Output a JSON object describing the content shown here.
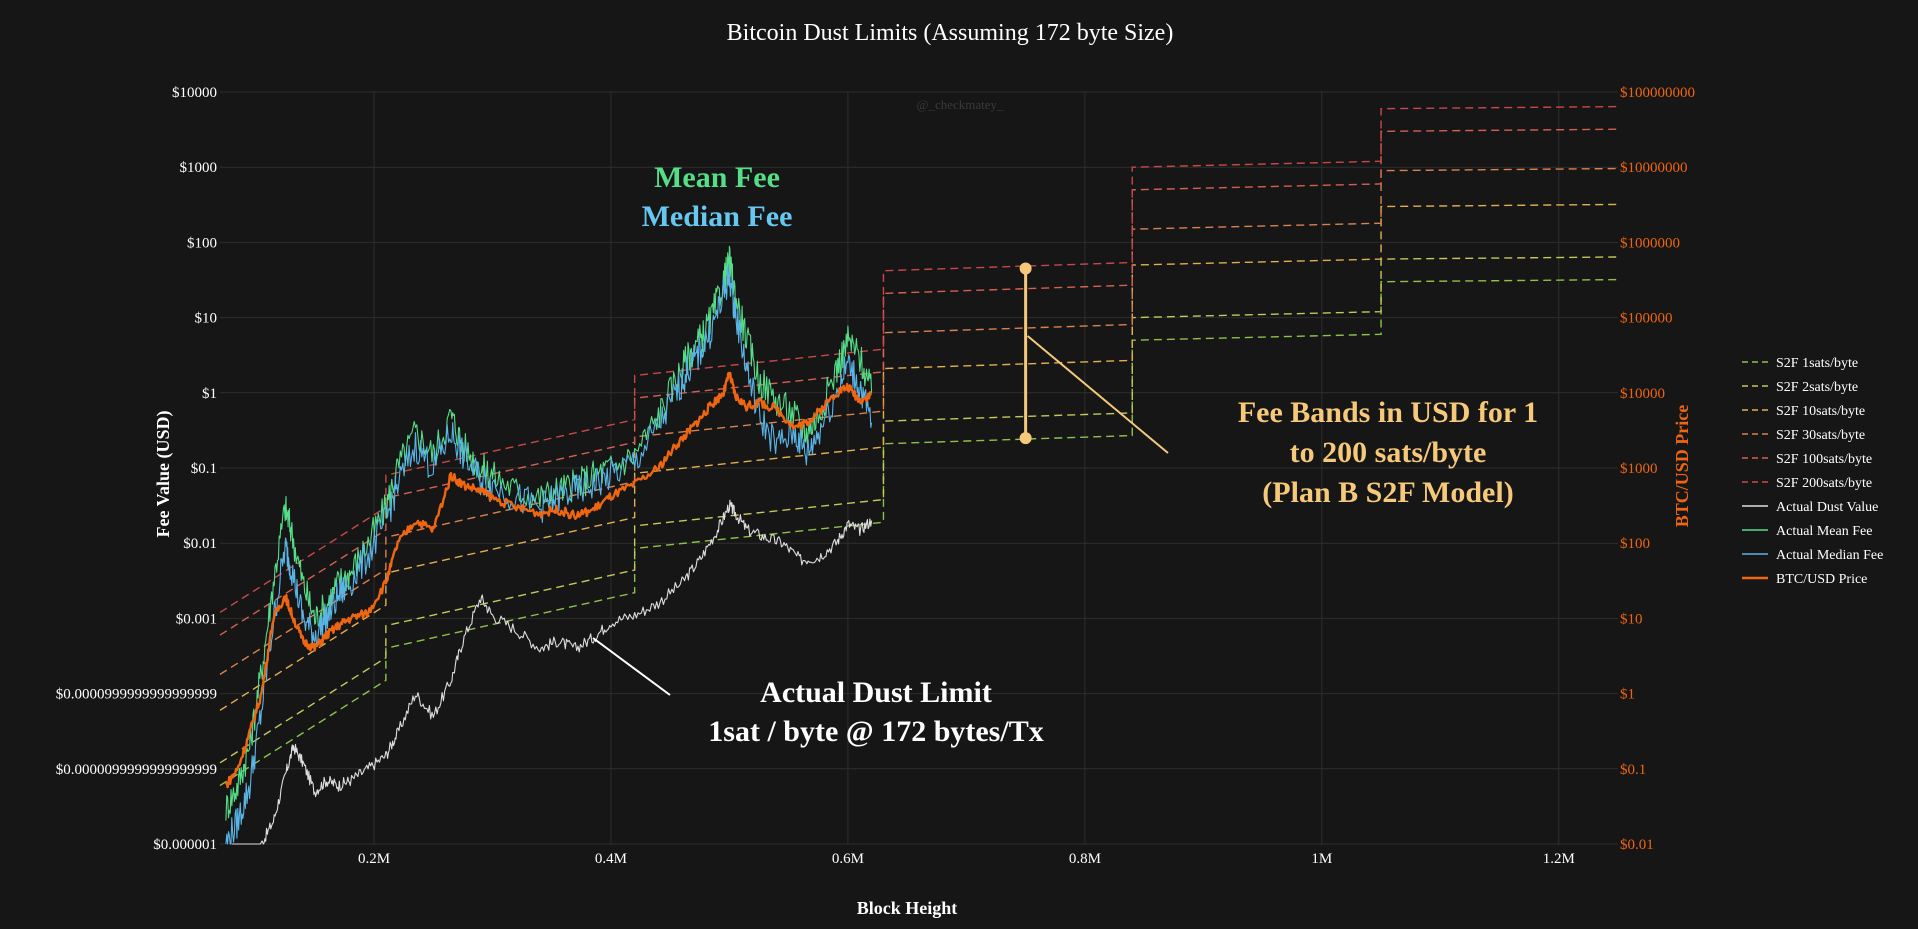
{
  "chart_data": {
    "type": "line",
    "title": "Bitcoin Dust Limits (Assuming 172 byte Size)",
    "watermark": "@_checkmatey_",
    "xlabel": "Block Height",
    "ylabel": "Fee Value (USD)",
    "y2label": "BTC/USD Price",
    "xlim": [
      70000,
      1250000
    ],
    "ylim": [
      1e-06,
      10000
    ],
    "y2lim": [
      0.01,
      100000000
    ],
    "yscale": "log",
    "y2scale": "log",
    "grid": true,
    "legend_position": "right",
    "x_ticks": [
      {
        "value": 200000,
        "label": "0.2M"
      },
      {
        "value": 400000,
        "label": "0.4M"
      },
      {
        "value": 600000,
        "label": "0.6M"
      },
      {
        "value": 800000,
        "label": "0.8M"
      },
      {
        "value": 1000000,
        "label": "1M"
      },
      {
        "value": 1200000,
        "label": "1.2M"
      }
    ],
    "y_ticks": [
      {
        "value": 10000,
        "label": "$10000"
      },
      {
        "value": 1000,
        "label": "$1000"
      },
      {
        "value": 100,
        "label": "$100"
      },
      {
        "value": 10,
        "label": "$10"
      },
      {
        "value": 1,
        "label": "$1"
      },
      {
        "value": 0.1,
        "label": "$0.1"
      },
      {
        "value": 0.01,
        "label": "$0.01"
      },
      {
        "value": 0.001,
        "label": "$0.001"
      },
      {
        "value": 0.0001,
        "label": "$0.0000999999999999999"
      },
      {
        "value": 1e-05,
        "label": "$0.0000099999999999999"
      },
      {
        "value": 1e-06,
        "label": "$0.000001"
      }
    ],
    "y2_ticks": [
      {
        "value": 100000000,
        "label": "$100000000"
      },
      {
        "value": 10000000,
        "label": "$10000000"
      },
      {
        "value": 1000000,
        "label": "$1000000"
      },
      {
        "value": 100000,
        "label": "$100000"
      },
      {
        "value": 10000,
        "label": "$10000"
      },
      {
        "value": 1000,
        "label": "$1000"
      },
      {
        "value": 100,
        "label": "$100"
      },
      {
        "value": 10,
        "label": "$10"
      },
      {
        "value": 1,
        "label": "$1"
      },
      {
        "value": 0.1,
        "label": "$0.1"
      },
      {
        "value": 0.01,
        "label": "$0.01"
      }
    ],
    "band_x_edges": [
      70000,
      210000,
      420000,
      630000,
      840000,
      1050000,
      1260000
    ],
    "band_series": [
      {
        "name": "S2F 1sats/byte",
        "color": "#8bc34a",
        "values": [
          [
            6e-06,
            0.00015
          ],
          [
            0.0004,
            0.0022
          ],
          [
            0.0085,
            0.019
          ],
          [
            0.21,
            0.27
          ],
          [
            5.0,
            6.0
          ],
          [
            30,
            32
          ]
        ]
      },
      {
        "name": "S2F 2sats/byte",
        "color": "#c5c85a",
        "values": [
          [
            1.2e-05,
            0.0003
          ],
          [
            0.0008,
            0.0044
          ],
          [
            0.017,
            0.038
          ],
          [
            0.42,
            0.54
          ],
          [
            10.0,
            12.0
          ],
          [
            60,
            64
          ]
        ]
      },
      {
        "name": "S2F 10sats/byte",
        "color": "#e0b050",
        "values": [
          [
            6e-05,
            0.0015
          ],
          [
            0.004,
            0.022
          ],
          [
            0.085,
            0.19
          ],
          [
            2.1,
            2.7
          ],
          [
            50,
            60
          ],
          [
            300,
            320
          ]
        ]
      },
      {
        "name": "S2F 30sats/byte",
        "color": "#d98250",
        "values": [
          [
            0.00018,
            0.0045
          ],
          [
            0.012,
            0.066
          ],
          [
            0.26,
            0.57
          ],
          [
            6.3,
            8.1
          ],
          [
            150,
            180
          ],
          [
            900,
            960
          ]
        ]
      },
      {
        "name": "S2F 100sats/byte",
        "color": "#d56050",
        "values": [
          [
            0.0006,
            0.015
          ],
          [
            0.04,
            0.22
          ],
          [
            0.85,
            1.9
          ],
          [
            21,
            27
          ],
          [
            500,
            600
          ],
          [
            3000,
            3200
          ]
        ]
      },
      {
        "name": "S2F 200sats/byte",
        "color": "#c84848",
        "values": [
          [
            0.0012,
            0.03
          ],
          [
            0.08,
            0.44
          ],
          [
            1.7,
            3.8
          ],
          [
            42,
            54
          ],
          [
            1000,
            1200
          ],
          [
            6000,
            6400
          ]
        ]
      }
    ],
    "series": [
      {
        "name": "Actual Dust Value",
        "color": "#dddddd",
        "axis": "y",
        "x": [
          80000,
          95000,
          105000,
          115000,
          125000,
          132000,
          140000,
          150000,
          160000,
          170000,
          180000,
          195000,
          210000,
          220000,
          235000,
          250000,
          265000,
          275000,
          290000,
          300000,
          320000,
          340000,
          355000,
          370000,
          385000,
          400000,
          420000,
          440000,
          460000,
          475000,
          490000,
          500000,
          505000,
          515000,
          530000,
          545000,
          560000,
          575000,
          590000,
          600000,
          610000,
          620000
        ],
        "values": [
          6e-07,
          7e-07,
          1e-06,
          2e-06,
          8e-06,
          2e-05,
          1.2e-05,
          5e-06,
          7e-06,
          6e-06,
          7e-06,
          1e-05,
          1.5e-05,
          3e-05,
          0.0001,
          5e-05,
          0.00015,
          0.0005,
          0.0019,
          0.0011,
          0.0007,
          0.0004,
          0.0005,
          0.0004,
          0.00055,
          0.0009,
          0.0011,
          0.0016,
          0.003,
          0.006,
          0.015,
          0.032,
          0.025,
          0.015,
          0.012,
          0.01,
          0.006,
          0.0065,
          0.01,
          0.018,
          0.015,
          0.02
        ]
      },
      {
        "name": "Actual Mean Fee",
        "color": "#55dd88",
        "axis": "y",
        "x": [
          75000,
          85000,
          95000,
          105000,
          115000,
          125000,
          130000,
          140000,
          150000,
          160000,
          170000,
          180000,
          195000,
          210000,
          220000,
          235000,
          250000,
          265000,
          275000,
          290000,
          300000,
          320000,
          340000,
          355000,
          370000,
          385000,
          400000,
          420000,
          440000,
          455000,
          465000,
          475000,
          485000,
          495000,
          500000,
          505000,
          515000,
          525000,
          540000,
          555000,
          565000,
          575000,
          590000,
          600000,
          610000,
          620000
        ],
        "values": [
          3e-06,
          6e-06,
          2e-05,
          0.0002,
          0.003,
          0.03,
          0.015,
          0.003,
          0.001,
          0.0015,
          0.003,
          0.004,
          0.01,
          0.03,
          0.1,
          0.3,
          0.15,
          0.5,
          0.2,
          0.1,
          0.08,
          0.05,
          0.04,
          0.05,
          0.06,
          0.08,
          0.1,
          0.15,
          0.5,
          1.5,
          3,
          5,
          10,
          30,
          55,
          20,
          5,
          1.5,
          0.8,
          0.5,
          0.3,
          0.5,
          2,
          5,
          3,
          1.0
        ]
      },
      {
        "name": "Actual Median Fee",
        "color": "#5ab4e6",
        "axis": "y",
        "x": [
          75000,
          85000,
          95000,
          105000,
          115000,
          125000,
          130000,
          140000,
          150000,
          160000,
          170000,
          180000,
          195000,
          210000,
          220000,
          235000,
          250000,
          265000,
          275000,
          290000,
          300000,
          320000,
          340000,
          355000,
          370000,
          385000,
          400000,
          420000,
          440000,
          455000,
          465000,
          475000,
          485000,
          495000,
          500000,
          505000,
          515000,
          525000,
          540000,
          555000,
          565000,
          575000,
          590000,
          600000,
          610000,
          620000
        ],
        "values": [
          1e-06,
          2e-06,
          6e-06,
          6e-05,
          0.0009,
          0.009,
          0.005,
          0.001,
          0.0006,
          0.001,
          0.002,
          0.003,
          0.007,
          0.02,
          0.06,
          0.2,
          0.1,
          0.3,
          0.15,
          0.07,
          0.06,
          0.04,
          0.03,
          0.04,
          0.05,
          0.06,
          0.08,
          0.12,
          0.35,
          1.0,
          2.0,
          3.5,
          7,
          20,
          35,
          12,
          2,
          0.5,
          0.2,
          0.3,
          0.15,
          0.3,
          1.0,
          2.5,
          1.2,
          0.4
        ]
      },
      {
        "name": "BTC/USD Price",
        "color": "#ee6611",
        "axis": "y2",
        "x": [
          75000,
          85000,
          95000,
          105000,
          115000,
          125000,
          130000,
          140000,
          150000,
          160000,
          170000,
          180000,
          195000,
          210000,
          220000,
          235000,
          250000,
          265000,
          275000,
          290000,
          300000,
          320000,
          340000,
          355000,
          370000,
          385000,
          400000,
          420000,
          440000,
          455000,
          465000,
          475000,
          485000,
          495000,
          500000,
          505000,
          515000,
          525000,
          540000,
          555000,
          565000,
          575000,
          590000,
          600000,
          610000,
          620000
        ],
        "values": [
          0.06,
          0.1,
          0.3,
          1,
          10,
          20,
          12,
          5,
          4,
          6,
          8,
          10,
          12,
          30,
          100,
          200,
          150,
          800,
          600,
          500,
          400,
          300,
          250,
          280,
          230,
          280,
          420,
          600,
          1000,
          2000,
          3000,
          4500,
          7000,
          10000,
          18000,
          9000,
          6500,
          7500,
          6000,
          3500,
          4000,
          5500,
          10000,
          12000,
          8000,
          9500
        ]
      }
    ],
    "annotations": [
      {
        "text": "Mean Fee",
        "color": "#55dd88"
      },
      {
        "text": "Median Fee",
        "color": "#66c8f0"
      },
      {
        "text": "Fee Bands in USD for 1",
        "color": "#f6c97a"
      },
      {
        "text": "to 200 sats/byte",
        "color": "#f6c97a"
      },
      {
        "text": "(Plan B S2F Model)",
        "color": "#f6c97a"
      },
      {
        "text": "Actual Dust Limit",
        "color": "#ffffff"
      },
      {
        "text": "1sat / byte @ 172 bytes/Tx",
        "color": "#ffffff"
      }
    ],
    "fee_band_marker": {
      "x": 750000,
      "y_low": 0.25,
      "y_high": 45,
      "color": "#f6c97a"
    }
  }
}
